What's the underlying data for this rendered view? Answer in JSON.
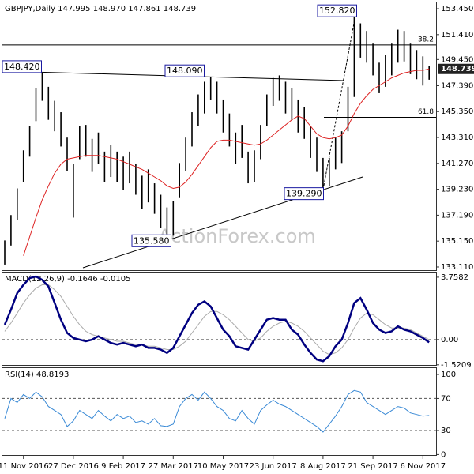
{
  "chart_data": [
    {
      "type": "range-bar",
      "title": "GBPJPY,Daily  147.995 148.970 147.861 148.739",
      "watermark": "ActionForex.com",
      "color": "#000000",
      "categories": [
        null,
        null,
        null,
        "11 Nov 2016",
        null,
        null,
        null,
        null,
        null,
        null,
        null,
        "27 Dec 2016",
        null,
        null,
        null,
        null,
        null,
        null,
        null,
        "9 Feb 2017",
        null,
        null,
        null,
        null,
        null,
        null,
        null,
        "27 Mar 2017",
        null,
        null,
        null,
        null,
        null,
        null,
        null,
        "10 May 2017",
        null,
        null,
        null,
        null,
        null,
        null,
        null,
        "23 Jun 2017",
        null,
        null,
        null,
        null,
        null,
        null,
        null,
        "8 Aug 2017",
        null,
        null,
        null,
        null,
        null,
        null,
        null,
        "21 Sep 2017",
        null,
        null,
        null,
        null,
        null,
        null,
        null,
        "6 Nov 2017",
        null
      ],
      "high": [
        135.2,
        137.2,
        139.3,
        142.3,
        144.2,
        147.2,
        148.42,
        147.3,
        146.2,
        145.3,
        143.3,
        141.2,
        144.2,
        144.3,
        143.2,
        143.7,
        142.2,
        142.7,
        142.2,
        141.8,
        142.2,
        141.2,
        140.3,
        140.8,
        139.7,
        138.8,
        137.8,
        138.3,
        141.3,
        143.3,
        145.3,
        146.7,
        147.7,
        148.09,
        147.7,
        146.3,
        145.2,
        143.7,
        144.3,
        142.2,
        142.3,
        144.3,
        146.7,
        148.0,
        148.2,
        147.7,
        147.2,
        146.3,
        145.7,
        144.2,
        143.3,
        141.7,
        141.7,
        143.3,
        143.8,
        147.3,
        152.82,
        152.3,
        151.7,
        150.7,
        149.2,
        149.8,
        150.7,
        151.8,
        151.7,
        150.7,
        150.2,
        149.7,
        148.97
      ],
      "low": [
        133.3,
        134.8,
        136.8,
        139.8,
        141.8,
        144.6,
        146.2,
        144.7,
        143.8,
        142.6,
        140.7,
        137.0,
        141.6,
        141.8,
        140.6,
        141.2,
        139.8,
        140.2,
        139.8,
        139.2,
        139.7,
        138.8,
        137.7,
        138.2,
        137.3,
        136.2,
        135.7,
        135.58,
        138.6,
        140.7,
        142.6,
        144.2,
        145.2,
        146.3,
        145.2,
        143.7,
        142.6,
        141.2,
        141.7,
        139.7,
        139.8,
        141.6,
        144.2,
        145.8,
        146.2,
        145.2,
        144.7,
        143.7,
        143.2,
        141.7,
        140.6,
        139.29,
        139.5,
        140.8,
        141.3,
        143.8,
        146.5,
        149.6,
        149.2,
        148.2,
        146.8,
        147.3,
        148.2,
        149.2,
        149.3,
        148.3,
        147.9,
        147.4,
        147.861
      ],
      "ma": {
        "color": "#dd2222",
        "values": [
          null,
          null,
          null,
          134.0,
          135.5,
          137.0,
          138.4,
          139.5,
          140.5,
          141.2,
          141.6,
          141.7,
          141.8,
          141.9,
          141.9,
          141.9,
          141.8,
          141.7,
          141.6,
          141.4,
          141.2,
          141.0,
          140.8,
          140.5,
          140.2,
          139.9,
          139.5,
          139.3,
          139.4,
          139.8,
          140.4,
          141.1,
          141.8,
          142.5,
          143.0,
          143.1,
          143.1,
          143.0,
          142.9,
          142.8,
          142.7,
          142.8,
          143.1,
          143.5,
          143.9,
          144.3,
          144.7,
          145.0,
          144.8,
          144.2,
          143.6,
          143.3,
          143.2,
          143.3,
          143.5,
          144.2,
          145.2,
          146.0,
          146.6,
          147.1,
          147.4,
          147.7,
          148.0,
          148.2,
          148.4,
          148.5,
          148.6,
          148.6,
          148.7
        ]
      },
      "ylim": [
        132.86,
        153.95
      ],
      "yticks": [
        {
          "value": 153.45,
          "label": "153.450"
        },
        {
          "value": 151.41,
          "label": "151.410"
        },
        {
          "value": 149.45,
          "label": "149.450"
        },
        {
          "value": 147.39,
          "label": "147.390"
        },
        {
          "value": 145.35,
          "label": "145.350"
        },
        {
          "value": 143.31,
          "label": "143.310"
        },
        {
          "value": 141.27,
          "label": "141.270"
        },
        {
          "value": 139.23,
          "label": "139.230"
        },
        {
          "value": 137.19,
          "label": "137.190"
        },
        {
          "value": 135.15,
          "label": "135.150"
        },
        {
          "value": 133.11,
          "label": "133.110"
        }
      ],
      "annotations": [
        {
          "value": 148.42,
          "label": "148.420"
        },
        {
          "value": 148.09,
          "label": "148.090"
        },
        {
          "value": 135.58,
          "label": "135.580"
        },
        {
          "value": 139.29,
          "label": "139.290"
        },
        {
          "value": 152.82,
          "label": "152.820"
        }
      ],
      "fib_levels": [
        {
          "value": 150.6,
          "label": "38.2"
        },
        {
          "value": 144.9,
          "label": "61.8"
        }
      ],
      "last_price": {
        "value": 148.739,
        "label": "148.739"
      }
    },
    {
      "type": "line",
      "title": "MACD(12,26,9) -0.1646 -0.0105",
      "series": [
        {
          "color": "#000080",
          "values": [
            0.9,
            1.8,
            2.8,
            3.3,
            3.7,
            3.8,
            3.6,
            3.2,
            2.2,
            1.2,
            0.4,
            0.1,
            0.0,
            -0.1,
            0.0,
            0.2,
            0.0,
            -0.2,
            -0.3,
            -0.2,
            -0.3,
            -0.4,
            -0.3,
            -0.5,
            -0.5,
            -0.6,
            -0.8,
            -0.5,
            0.2,
            0.9,
            1.6,
            2.1,
            2.3,
            2.0,
            1.3,
            0.6,
            0.2,
            -0.4,
            -0.5,
            -0.6,
            0.0,
            0.6,
            1.2,
            1.3,
            1.2,
            1.2,
            0.6,
            0.3,
            -0.3,
            -0.8,
            -1.2,
            -1.3,
            -1.0,
            -0.4,
            0.0,
            1.0,
            2.2,
            2.5,
            1.8,
            1.0,
            0.6,
            0.4,
            0.5,
            0.8,
            0.6,
            0.5,
            0.3,
            0.1,
            -0.1646
          ]
        },
        {
          "color": "#aaaaaa",
          "values": [
            0.5,
            1.0,
            1.6,
            2.2,
            2.7,
            3.1,
            3.3,
            3.3,
            3.0,
            2.6,
            2.0,
            1.4,
            0.9,
            0.5,
            0.3,
            0.2,
            0.1,
            0.0,
            -0.1,
            -0.1,
            -0.2,
            -0.3,
            -0.3,
            -0.4,
            -0.4,
            -0.5,
            -0.6,
            -0.6,
            -0.4,
            -0.1,
            0.4,
            0.9,
            1.4,
            1.7,
            1.7,
            1.5,
            1.2,
            0.8,
            0.4,
            0.0,
            -0.1,
            0.1,
            0.5,
            0.8,
            1.0,
            1.1,
            1.0,
            0.8,
            0.5,
            0.1,
            -0.3,
            -0.7,
            -0.9,
            -0.8,
            -0.5,
            0.0,
            0.7,
            1.3,
            1.6,
            1.5,
            1.2,
            0.9,
            0.7,
            0.7,
            0.7,
            0.6,
            0.4,
            0.2,
            -0.0105
          ]
        }
      ],
      "ylim": [
        -1.53,
        4.04
      ],
      "yticks": [
        3.7582,
        {
          "value": 0,
          "label": "0.00"
        },
        -1.5209
      ],
      "dashed_lines": [
        0
      ]
    },
    {
      "type": "line",
      "title": "RSI(14) 48.8193",
      "series": [
        {
          "color": "#3a8ad6",
          "values": [
            45,
            70,
            65,
            75,
            70,
            78,
            72,
            60,
            55,
            50,
            35,
            42,
            55,
            50,
            45,
            55,
            48,
            42,
            50,
            45,
            48,
            40,
            42,
            38,
            45,
            36,
            35,
            38,
            60,
            70,
            75,
            68,
            78,
            70,
            60,
            55,
            45,
            42,
            55,
            45,
            38,
            55,
            62,
            68,
            63,
            60,
            55,
            50,
            45,
            40,
            35,
            28,
            38,
            48,
            60,
            75,
            80,
            78,
            65,
            60,
            55,
            50,
            55,
            60,
            58,
            52,
            50,
            48,
            48.8193
          ]
        }
      ],
      "ylim": [
        -0.6,
        107.9
      ],
      "yticks": [
        100,
        70,
        30,
        0
      ],
      "dashed_lines": [
        70,
        30
      ]
    }
  ]
}
